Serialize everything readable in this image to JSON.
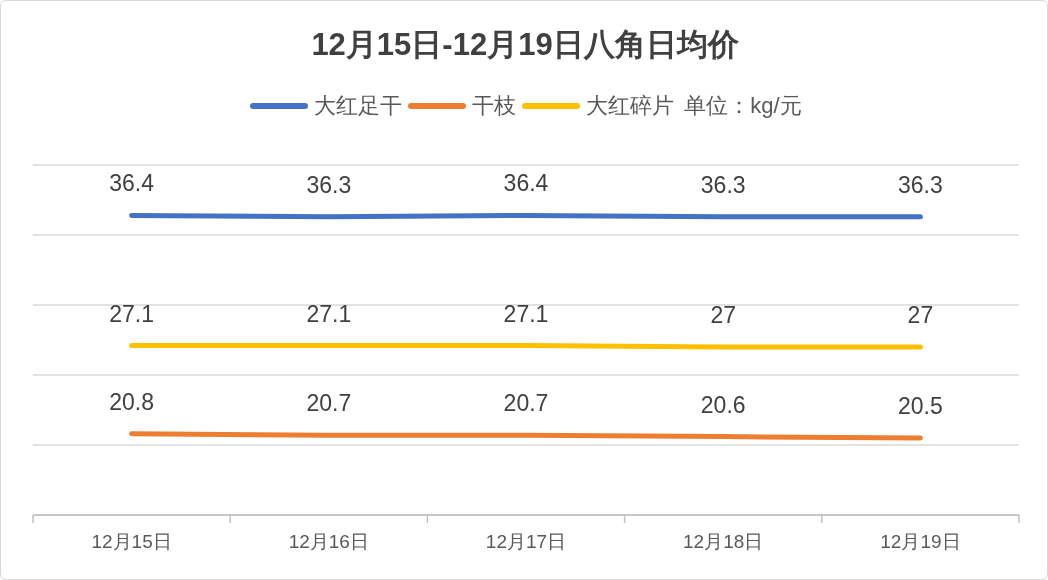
{
  "chart_data": {
    "type": "line",
    "title": "12月15日-12月19日八角日均价",
    "categories": [
      "12月15日",
      "12月16日",
      "12月17日",
      "12月18日",
      "12月19日"
    ],
    "series": [
      {
        "name": "大红足干",
        "color": "#4472c4",
        "values": [
          36.4,
          36.3,
          36.4,
          36.3,
          36.3
        ]
      },
      {
        "name": "干枝",
        "color": "#ed7d31",
        "values": [
          20.8,
          20.7,
          20.7,
          20.6,
          20.5
        ]
      },
      {
        "name": "大红碎片",
        "color": "#ffc000",
        "values": [
          27.1,
          27.1,
          27.1,
          27,
          27
        ]
      }
    ],
    "ylim": [
      15,
      40
    ],
    "yticks": [
      {
        "value": 15,
        "label": null
      },
      {
        "value": 20,
        "label": null
      },
      {
        "value": 25,
        "label": null
      },
      {
        "value": 30,
        "label": null
      },
      {
        "value": 35,
        "label": null
      },
      {
        "value": 40,
        "label": null
      }
    ],
    "grid": "y",
    "legend": "top",
    "tick_labels": "x",
    "data_labels": true,
    "annotations": [
      "单位：kg/元"
    ]
  }
}
